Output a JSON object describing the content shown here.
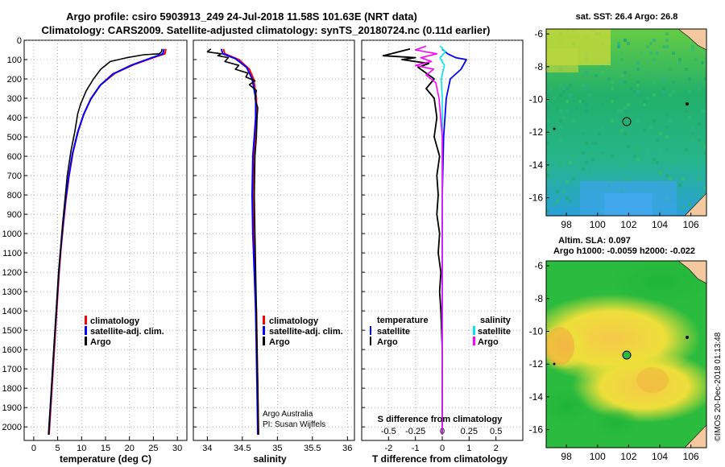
{
  "header": {
    "title_line1": "Argo profile: csiro 5903913_249 24-Jul-2018 11.58S 101.63E (NRT data)",
    "title_line2": "Climatology: CARS2009. Satellite-adjusted climatology: synTS_20180724.nc (0.11d earlier)"
  },
  "colors": {
    "climatology": "#ff0000",
    "satellite": "#0000ff",
    "argo": "#000000",
    "sal_satellite": "#00e5ee",
    "sal_argo": "#ff00ff",
    "ocean_green": "#22b34a",
    "map_yellow": "#f2f22a",
    "land": "#f5c9a0"
  },
  "chart_data": [
    {
      "id": "temperature",
      "type": "line",
      "xlabel": "temperature (deg C)",
      "xlim": [
        -2,
        32
      ],
      "xticks": [
        0,
        5,
        10,
        15,
        20,
        25,
        30
      ],
      "ylim": [
        2070,
        0
      ],
      "yticks": [
        0,
        100,
        200,
        300,
        400,
        500,
        600,
        700,
        800,
        900,
        1000,
        1100,
        1200,
        1300,
        1400,
        1500,
        1600,
        1700,
        1800,
        1900,
        2000
      ],
      "legend": [
        "climatology",
        "satellite-adj. clim.",
        "Argo"
      ],
      "series": [
        {
          "name": "climatology",
          "color_key": "climatology",
          "points": [
            [
              27.6,
              45
            ],
            [
              27.4,
              70
            ],
            [
              25,
              90
            ],
            [
              21,
              125
            ],
            [
              17,
              170
            ],
            [
              14,
              230
            ],
            [
              12,
              300
            ],
            [
              10.5,
              380
            ],
            [
              9.3,
              470
            ],
            [
              8.2,
              580
            ],
            [
              7.4,
              700
            ],
            [
              6.7,
              830
            ],
            [
              6.2,
              950
            ],
            [
              5.7,
              1080
            ],
            [
              5.3,
              1200
            ],
            [
              5,
              1320
            ],
            [
              4.7,
              1440
            ],
            [
              4.4,
              1560
            ],
            [
              4.1,
              1680
            ],
            [
              3.8,
              1800
            ],
            [
              3.5,
              1920
            ],
            [
              3.2,
              2040
            ]
          ]
        },
        {
          "name": "satellite-adj. clim.",
          "color_key": "satellite",
          "points": [
            [
              27.2,
              45
            ],
            [
              27,
              70
            ],
            [
              24.5,
              92
            ],
            [
              20.5,
              128
            ],
            [
              16.5,
              175
            ],
            [
              13.8,
              235
            ],
            [
              11.9,
              305
            ],
            [
              10.4,
              385
            ],
            [
              9.2,
              475
            ],
            [
              8.1,
              585
            ],
            [
              7.3,
              705
            ],
            [
              6.6,
              835
            ],
            [
              6.1,
              955
            ],
            [
              5.6,
              1085
            ],
            [
              5.2,
              1205
            ],
            [
              4.9,
              1325
            ],
            [
              4.6,
              1445
            ],
            [
              4.3,
              1565
            ],
            [
              4,
              1685
            ],
            [
              3.7,
              1805
            ],
            [
              3.4,
              1925
            ],
            [
              3.1,
              2040
            ]
          ]
        },
        {
          "name": "Argo",
          "color_key": "argo",
          "points": [
            [
              26.8,
              45
            ],
            [
              26.7,
              60
            ],
            [
              26.2,
              70
            ],
            [
              23,
              75
            ],
            [
              19.5,
              90
            ],
            [
              16,
              110
            ],
            [
              14,
              150
            ],
            [
              12.5,
              200
            ],
            [
              11,
              260
            ],
            [
              9.8,
              330
            ],
            [
              9.2,
              380
            ],
            [
              8.6,
              470
            ],
            [
              7.8,
              570
            ],
            [
              7,
              700
            ],
            [
              6.5,
              830
            ],
            [
              6,
              960
            ],
            [
              5.6,
              1080
            ],
            [
              5.2,
              1200
            ],
            [
              4.9,
              1320
            ],
            [
              4.6,
              1440
            ],
            [
              4.3,
              1560
            ],
            [
              4,
              1680
            ],
            [
              3.7,
              1800
            ],
            [
              3.4,
              1920
            ],
            [
              3.1,
              2040
            ]
          ]
        }
      ]
    },
    {
      "id": "salinity",
      "type": "line",
      "xlabel": "salinity",
      "xlim": [
        33.8,
        36.1
      ],
      "xticks": [
        34,
        34.5,
        35,
        35.5,
        36
      ],
      "ylim": [
        2070,
        0
      ],
      "legend": [
        "climatology",
        "satellite-adj. clim.",
        "Argo"
      ],
      "series": [
        {
          "name": "climatology",
          "color_key": "climatology",
          "points": [
            [
              34.23,
              45
            ],
            [
              34.25,
              70
            ],
            [
              34.45,
              100
            ],
            [
              34.6,
              150
            ],
            [
              34.66,
              200
            ],
            [
              34.7,
              300
            ],
            [
              34.7,
              400
            ],
            [
              34.68,
              500
            ],
            [
              34.66,
              600
            ],
            [
              34.65,
              800
            ],
            [
              34.66,
              1000
            ],
            [
              34.68,
              1200
            ],
            [
              34.7,
              1400
            ],
            [
              34.71,
              1600
            ],
            [
              34.72,
              1800
            ],
            [
              34.73,
              2040
            ]
          ]
        },
        {
          "name": "satellite-adj. clim.",
          "color_key": "satellite",
          "points": [
            [
              34.2,
              45
            ],
            [
              34.22,
              70
            ],
            [
              34.4,
              95
            ],
            [
              34.56,
              140
            ],
            [
              34.64,
              200
            ],
            [
              34.69,
              300
            ],
            [
              34.69,
              400
            ],
            [
              34.67,
              500
            ],
            [
              34.65,
              600
            ],
            [
              34.64,
              800
            ],
            [
              34.65,
              1000
            ],
            [
              34.67,
              1200
            ],
            [
              34.69,
              1400
            ],
            [
              34.7,
              1600
            ],
            [
              34.71,
              1800
            ],
            [
              34.72,
              2040
            ]
          ]
        },
        {
          "name": "Argo",
          "color_key": "argo",
          "points": [
            [
              34.05,
              45
            ],
            [
              34.0,
              60
            ],
            [
              34.2,
              70
            ],
            [
              34.15,
              80
            ],
            [
              34.3,
              90
            ],
            [
              34.25,
              110
            ],
            [
              34.45,
              130
            ],
            [
              34.4,
              150
            ],
            [
              34.58,
              170
            ],
            [
              34.55,
              190
            ],
            [
              34.68,
              210
            ],
            [
              34.6,
              230
            ],
            [
              34.7,
              260
            ],
            [
              34.68,
              300
            ],
            [
              34.72,
              350
            ],
            [
              34.71,
              400
            ],
            [
              34.7,
              500
            ],
            [
              34.68,
              600
            ],
            [
              34.67,
              800
            ],
            [
              34.68,
              1000
            ],
            [
              34.69,
              1200
            ],
            [
              34.7,
              1400
            ],
            [
              34.71,
              1600
            ],
            [
              34.72,
              1800
            ],
            [
              34.73,
              2040
            ]
          ]
        }
      ],
      "credit_line1": "Argo Australia",
      "credit_line2": "PI: Susan Wijffels"
    },
    {
      "id": "differences",
      "type": "line",
      "xlabel": "T difference from climatology",
      "xlim": [
        -3,
        3
      ],
      "xticks": [
        -2,
        -1,
        0,
        1,
        2
      ],
      "sal_label": "S difference from climatology",
      "sal_tick_labels": [
        "-0.5",
        "-0.25",
        "0",
        "0.25",
        "0.5"
      ],
      "sal_xlim": [
        -0.75,
        0.75
      ],
      "ylim": [
        2070,
        0
      ],
      "legend_temperature_title": "temperature",
      "legend_salinity_title": "salinity",
      "legend_temperature": [
        "satellite",
        "Argo"
      ],
      "legend_salinity": [
        "satellite",
        "Argo"
      ],
      "series": [
        {
          "name": "T satellite",
          "color_key": "satellite",
          "units": "temperature",
          "points": [
            [
              0,
              45
            ],
            [
              0.2,
              70
            ],
            [
              0.5,
              90
            ],
            [
              0.9,
              100
            ],
            [
              0.7,
              150
            ],
            [
              0.3,
              200
            ],
            [
              0.15,
              300
            ],
            [
              0.05,
              500
            ],
            [
              0,
              800
            ],
            [
              0,
              1200
            ],
            [
              0,
              1600
            ],
            [
              0,
              2040
            ]
          ]
        },
        {
          "name": "T Argo",
          "color_key": "argo",
          "units": "temperature",
          "points": [
            [
              -1.2,
              45
            ],
            [
              -2.2,
              80
            ],
            [
              -1,
              90
            ],
            [
              -1.5,
              100
            ],
            [
              -0.5,
              120
            ],
            [
              -0.9,
              140
            ],
            [
              -0.3,
              200
            ],
            [
              -0.6,
              250
            ],
            [
              -0.3,
              300
            ],
            [
              -0.2,
              400
            ],
            [
              -0.3,
              500
            ],
            [
              -0.1,
              600
            ],
            [
              -0.2,
              700
            ],
            [
              -0.15,
              800
            ],
            [
              -0.2,
              900
            ],
            [
              -0.1,
              1000
            ],
            [
              -0.15,
              1100
            ],
            [
              -0.05,
              1200
            ],
            [
              -0.1,
              1300
            ],
            [
              -0.05,
              1400
            ],
            [
              0,
              1600
            ],
            [
              0,
              2040
            ]
          ]
        },
        {
          "name": "S satellite",
          "color_key": "sal_satellite",
          "units": "salinity",
          "points": [
            [
              -0.02,
              30
            ],
            [
              0.03,
              60
            ],
            [
              -0.02,
              90
            ],
            [
              0.02,
              130
            ],
            [
              -0.01,
              200
            ],
            [
              0,
              300
            ],
            [
              0,
              500
            ],
            [
              0,
              1000
            ],
            [
              0,
              2040
            ]
          ]
        },
        {
          "name": "S Argo",
          "color_key": "sal_argo",
          "units": "salinity",
          "points": [
            [
              -0.15,
              30
            ],
            [
              -0.25,
              50
            ],
            [
              -0.05,
              70
            ],
            [
              -0.2,
              90
            ],
            [
              -0.1,
              110
            ],
            [
              -0.25,
              130
            ],
            [
              -0.08,
              150
            ],
            [
              -0.15,
              180
            ],
            [
              -0.06,
              220
            ],
            [
              -0.03,
              300
            ],
            [
              0,
              500
            ],
            [
              0,
              1000
            ],
            [
              0,
              2040
            ]
          ]
        }
      ]
    }
  ],
  "maps": {
    "sst": {
      "title": "sat. SST: 26.4 Argo: 26.8",
      "x_ticks": [
        "98",
        "100",
        "102",
        "104",
        "106"
      ],
      "y_ticks": [
        "-6",
        "-8",
        "-10",
        "-12",
        "-14",
        "-16"
      ]
    },
    "sla": {
      "title_line1": "Altim. SLA: 0.097",
      "title_line2": "Argo h1000: -0.0059 h2000: -0.022",
      "x_ticks": [
        "98",
        "100",
        "102",
        "104",
        "106"
      ],
      "y_ticks": [
        "-6",
        "-8",
        "-10",
        "-12",
        "-14",
        "-16"
      ]
    }
  },
  "footer": {
    "watermark": "©IMOS 20-Dec-2018 01:13:48"
  }
}
